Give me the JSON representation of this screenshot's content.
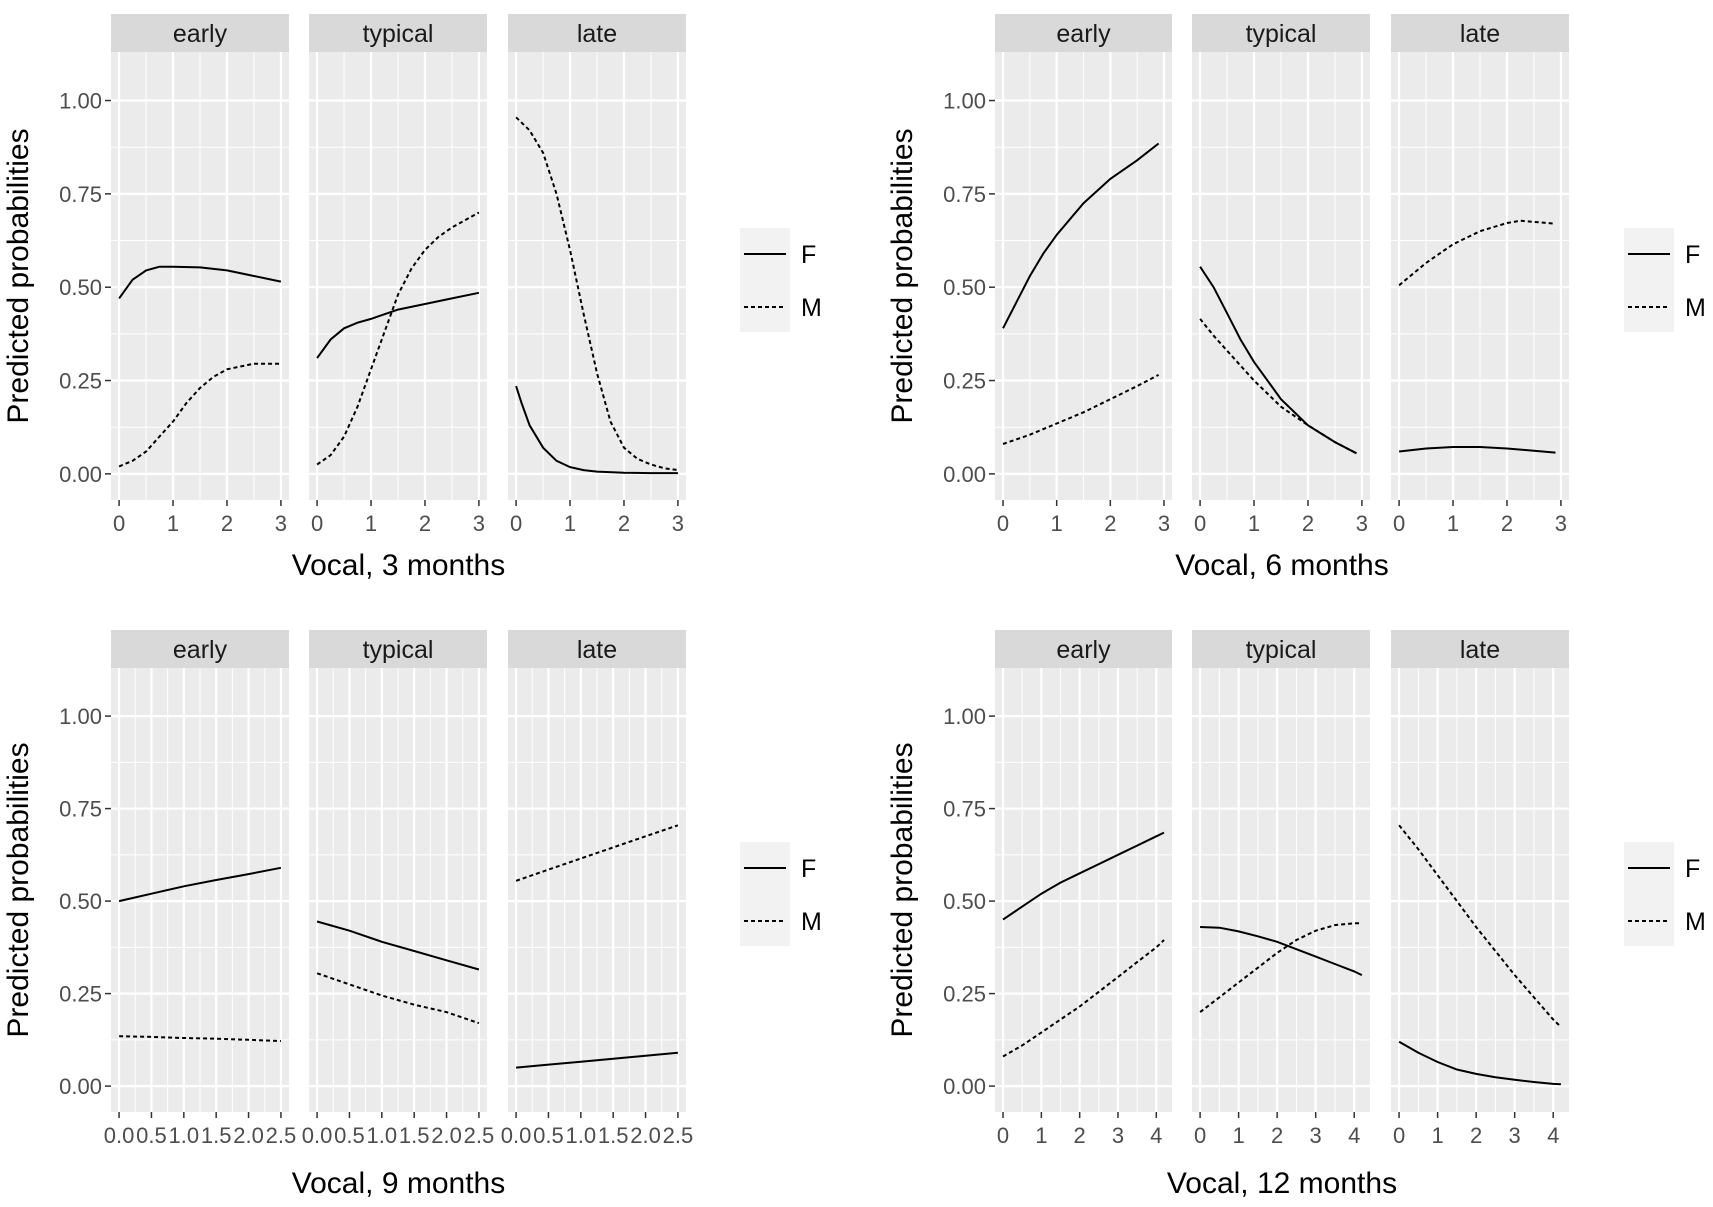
{
  "chart_data": [
    {
      "type": "line",
      "xlabel": "Vocal, 3 months",
      "ylabel": "Predicted probabilities",
      "ylim": [
        -0.07,
        1.13
      ],
      "yticks": [
        0,
        0.25,
        0.5,
        0.75,
        1.0
      ],
      "ytick_labels": [
        "0.00",
        "0.25",
        "0.50",
        "0.75",
        "1.00"
      ],
      "xlim": [
        -0.15,
        3.15
      ],
      "xticks": [
        0,
        1,
        2,
        3
      ],
      "xtick_labels": [
        "0",
        "1",
        "2",
        "3"
      ],
      "legend": {
        "placement": "right",
        "entries": [
          {
            "name": "F",
            "linetype": "solid"
          },
          {
            "name": "M",
            "linetype": "dotted"
          }
        ]
      },
      "grid": true,
      "facets": [
        {
          "label": "early",
          "series": [
            {
              "name": "F",
              "x": [
                0,
                0.25,
                0.5,
                0.75,
                1,
                1.5,
                2,
                2.5,
                3
              ],
              "values": [
                0.47,
                0.52,
                0.545,
                0.555,
                0.555,
                0.553,
                0.545,
                0.53,
                0.515
              ]
            },
            {
              "name": "M",
              "x": [
                0,
                0.25,
                0.5,
                0.75,
                1,
                1.25,
                1.5,
                1.75,
                2,
                2.5,
                3
              ],
              "values": [
                0.02,
                0.035,
                0.06,
                0.1,
                0.14,
                0.19,
                0.23,
                0.26,
                0.28,
                0.295,
                0.295
              ]
            }
          ]
        },
        {
          "label": "typical",
          "series": [
            {
              "name": "F",
              "x": [
                0,
                0.25,
                0.5,
                0.75,
                1,
                1.5,
                2,
                2.5,
                3
              ],
              "values": [
                0.31,
                0.36,
                0.39,
                0.405,
                0.415,
                0.44,
                0.455,
                0.47,
                0.485
              ]
            },
            {
              "name": "M",
              "x": [
                0,
                0.25,
                0.5,
                0.75,
                1,
                1.25,
                1.5,
                1.75,
                2,
                2.25,
                2.5,
                2.75,
                3
              ],
              "values": [
                0.025,
                0.05,
                0.1,
                0.18,
                0.28,
                0.38,
                0.48,
                0.55,
                0.6,
                0.635,
                0.66,
                0.68,
                0.7
              ]
            }
          ]
        },
        {
          "label": "late",
          "series": [
            {
              "name": "F",
              "x": [
                0,
                0.1,
                0.25,
                0.5,
                0.75,
                1,
                1.25,
                1.5,
                2,
                2.5,
                3
              ],
              "values": [
                0.235,
                0.19,
                0.13,
                0.07,
                0.035,
                0.018,
                0.01,
                0.006,
                0.003,
                0.002,
                0.002
              ]
            },
            {
              "name": "M",
              "x": [
                0,
                0.25,
                0.5,
                0.75,
                1,
                1.25,
                1.5,
                1.75,
                2,
                2.25,
                2.5,
                2.75,
                3
              ],
              "values": [
                0.955,
                0.92,
                0.86,
                0.75,
                0.6,
                0.43,
                0.27,
                0.14,
                0.07,
                0.04,
                0.025,
                0.015,
                0.01
              ]
            }
          ]
        }
      ]
    },
    {
      "type": "line",
      "xlabel": "Vocal, 6 months",
      "ylabel": "Predicted probabilities",
      "ylim": [
        -0.07,
        1.13
      ],
      "yticks": [
        0,
        0.25,
        0.5,
        0.75,
        1.0
      ],
      "ytick_labels": [
        "0.00",
        "0.25",
        "0.50",
        "0.75",
        "1.00"
      ],
      "xlim": [
        -0.15,
        3.15
      ],
      "xticks": [
        0,
        1,
        2,
        3
      ],
      "xtick_labels": [
        "0",
        "1",
        "2",
        "3"
      ],
      "legend": {
        "placement": "right",
        "entries": [
          {
            "name": "F",
            "linetype": "solid"
          },
          {
            "name": "M",
            "linetype": "dotted"
          }
        ]
      },
      "grid": true,
      "facets": [
        {
          "label": "early",
          "series": [
            {
              "name": "F",
              "x": [
                0,
                0.25,
                0.5,
                0.75,
                1,
                1.5,
                2,
                2.5,
                2.9
              ],
              "values": [
                0.39,
                0.46,
                0.53,
                0.59,
                0.64,
                0.725,
                0.79,
                0.84,
                0.885
              ]
            },
            {
              "name": "M",
              "x": [
                0,
                0.5,
                1,
                1.5,
                2,
                2.5,
                2.9
              ],
              "values": [
                0.08,
                0.105,
                0.135,
                0.165,
                0.2,
                0.235,
                0.265
              ]
            }
          ]
        },
        {
          "label": "typical",
          "series": [
            {
              "name": "F",
              "x": [
                0,
                0.25,
                0.5,
                0.75,
                1,
                1.5,
                2,
                2.5,
                2.9
              ],
              "values": [
                0.555,
                0.5,
                0.43,
                0.36,
                0.3,
                0.2,
                0.13,
                0.085,
                0.055
              ]
            },
            {
              "name": "M",
              "x": [
                0,
                0.25,
                0.5,
                0.75,
                1,
                1.5,
                2,
                2.5,
                2.9
              ],
              "values": [
                0.415,
                0.37,
                0.33,
                0.29,
                0.25,
                0.18,
                0.13,
                0.085,
                0.055
              ]
            }
          ]
        },
        {
          "label": "late",
          "series": [
            {
              "name": "F",
              "x": [
                0,
                0.5,
                1,
                1.5,
                2,
                2.5,
                2.9
              ],
              "values": [
                0.06,
                0.068,
                0.072,
                0.072,
                0.068,
                0.062,
                0.057
              ]
            },
            {
              "name": "M",
              "x": [
                0,
                0.5,
                1,
                1.5,
                2,
                2.25,
                2.5,
                2.9
              ],
              "values": [
                0.505,
                0.565,
                0.615,
                0.65,
                0.672,
                0.678,
                0.675,
                0.67
              ]
            }
          ]
        }
      ]
    },
    {
      "type": "line",
      "xlabel": "Vocal, 9 months",
      "ylabel": "Predicted probabilities",
      "ylim": [
        -0.07,
        1.13
      ],
      "yticks": [
        0,
        0.25,
        0.5,
        0.75,
        1.0
      ],
      "ytick_labels": [
        "0.00",
        "0.25",
        "0.50",
        "0.75",
        "1.00"
      ],
      "xlim": [
        -0.125,
        2.625
      ],
      "xticks": [
        0,
        0.5,
        1,
        1.5,
        2,
        2.5
      ],
      "xtick_labels": [
        "0.0",
        "0.5",
        "1.0",
        "1.5",
        "2.0",
        "2.5"
      ],
      "legend": {
        "placement": "right",
        "entries": [
          {
            "name": "F",
            "linetype": "solid"
          },
          {
            "name": "M",
            "linetype": "dotted"
          }
        ]
      },
      "grid": true,
      "facets": [
        {
          "label": "early",
          "series": [
            {
              "name": "F",
              "x": [
                0,
                0.5,
                1,
                1.5,
                2,
                2.5
              ],
              "values": [
                0.5,
                0.52,
                0.54,
                0.557,
                0.573,
                0.59
              ]
            },
            {
              "name": "M",
              "x": [
                0,
                0.5,
                1,
                1.5,
                2,
                2.5
              ],
              "values": [
                0.135,
                0.133,
                0.13,
                0.128,
                0.125,
                0.122
              ]
            }
          ]
        },
        {
          "label": "typical",
          "series": [
            {
              "name": "F",
              "x": [
                0,
                0.5,
                1,
                1.5,
                2,
                2.5
              ],
              "values": [
                0.445,
                0.42,
                0.39,
                0.365,
                0.34,
                0.315
              ]
            },
            {
              "name": "M",
              "x": [
                0,
                0.5,
                1,
                1.5,
                2,
                2.5
              ],
              "values": [
                0.305,
                0.275,
                0.245,
                0.22,
                0.2,
                0.17
              ]
            }
          ]
        },
        {
          "label": "late",
          "series": [
            {
              "name": "F",
              "x": [
                0,
                0.5,
                1,
                1.5,
                2,
                2.5
              ],
              "values": [
                0.05,
                0.058,
                0.066,
                0.074,
                0.082,
                0.09
              ]
            },
            {
              "name": "M",
              "x": [
                0,
                0.5,
                1,
                1.5,
                2,
                2.5
              ],
              "values": [
                0.555,
                0.585,
                0.615,
                0.645,
                0.675,
                0.705
              ]
            }
          ]
        }
      ]
    },
    {
      "type": "line",
      "xlabel": "Vocal, 12 months",
      "ylabel": "Predicted probabilities",
      "ylim": [
        -0.07,
        1.13
      ],
      "yticks": [
        0,
        0.25,
        0.5,
        0.75,
        1.0
      ],
      "ytick_labels": [
        "0.00",
        "0.25",
        "0.50",
        "0.75",
        "1.00"
      ],
      "xlim": [
        -0.21,
        4.41
      ],
      "xticks": [
        0,
        1,
        2,
        3,
        4
      ],
      "xtick_labels": [
        "0",
        "1",
        "2",
        "3",
        "4"
      ],
      "legend": {
        "placement": "right",
        "entries": [
          {
            "name": "F",
            "linetype": "solid"
          },
          {
            "name": "M",
            "linetype": "dotted"
          }
        ]
      },
      "grid": true,
      "facets": [
        {
          "label": "early",
          "series": [
            {
              "name": "F",
              "x": [
                0,
                0.5,
                1,
                1.5,
                2,
                2.5,
                3,
                3.5,
                4,
                4.2
              ],
              "values": [
                0.45,
                0.485,
                0.52,
                0.55,
                0.575,
                0.6,
                0.625,
                0.65,
                0.675,
                0.685
              ]
            },
            {
              "name": "M",
              "x": [
                0,
                0.5,
                1,
                1.5,
                2,
                2.5,
                3,
                3.5,
                4,
                4.2
              ],
              "values": [
                0.08,
                0.11,
                0.145,
                0.18,
                0.215,
                0.255,
                0.295,
                0.335,
                0.375,
                0.395
              ]
            }
          ]
        },
        {
          "label": "typical",
          "series": [
            {
              "name": "F",
              "x": [
                0,
                0.5,
                1,
                1.5,
                2,
                2.5,
                3,
                3.5,
                4,
                4.2
              ],
              "values": [
                0.43,
                0.428,
                0.418,
                0.405,
                0.39,
                0.37,
                0.35,
                0.33,
                0.31,
                0.3
              ]
            },
            {
              "name": "M",
              "x": [
                0,
                0.5,
                1,
                1.5,
                2,
                2.5,
                3,
                3.5,
                4,
                4.2
              ],
              "values": [
                0.2,
                0.24,
                0.28,
                0.32,
                0.36,
                0.395,
                0.42,
                0.435,
                0.44,
                0.44
              ]
            }
          ]
        },
        {
          "label": "late",
          "series": [
            {
              "name": "F",
              "x": [
                0,
                0.5,
                1,
                1.5,
                2,
                2.5,
                3,
                3.5,
                4,
                4.2
              ],
              "values": [
                0.12,
                0.09,
                0.065,
                0.045,
                0.033,
                0.024,
                0.017,
                0.011,
                0.006,
                0.005
              ]
            },
            {
              "name": "M",
              "x": [
                0,
                0.5,
                1,
                1.5,
                2,
                2.5,
                3,
                3.5,
                4,
                4.2
              ],
              "values": [
                0.705,
                0.64,
                0.57,
                0.5,
                0.43,
                0.365,
                0.3,
                0.24,
                0.18,
                0.16
              ]
            }
          ]
        }
      ]
    }
  ]
}
